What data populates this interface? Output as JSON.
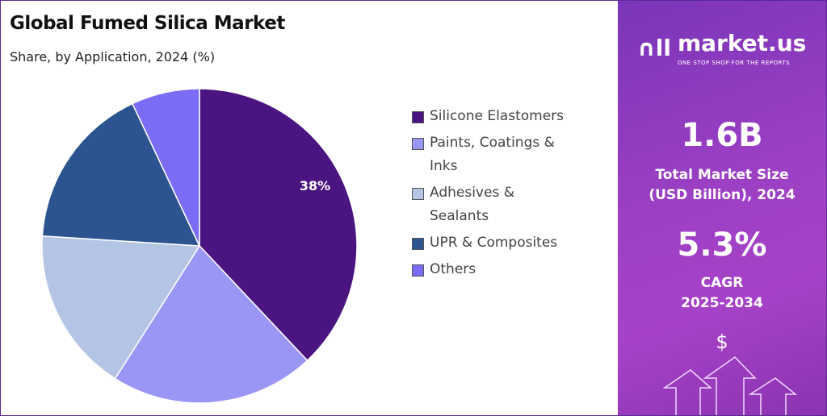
{
  "chart_data": {
    "type": "pie",
    "title": "Global Fumed Silica Market",
    "subtitle": "Share, by Application, 2024 (%)",
    "categories": [
      "Silicone Elastomers",
      "Paints, Coatings & Inks",
      "Adhesives & Sealants",
      "UPR & Composites",
      "Others"
    ],
    "values": [
      38,
      21,
      17,
      17,
      7
    ],
    "colors": [
      "#4a1580",
      "#9a96f5",
      "#b3c4e4",
      "#2c5491",
      "#7b6cf6"
    ],
    "data_labels": [
      "38%"
    ],
    "legend_position": "right",
    "start": "top, clockwise"
  },
  "legend": [
    "Silicone Elastomers",
    "Paints, Coatings & Inks",
    "Adhesives & Sealants",
    "UPR & Composites",
    "Others"
  ],
  "panel": {
    "brand": "market.us",
    "tagline": "ONE STOP SHOP FOR THE REPORTS",
    "market_size": "1.6B",
    "market_size_label_1": "Total Market Size",
    "market_size_label_2": "(USD Billion), 2024",
    "cagr": "5.3%",
    "cagr_label_1": "CAGR",
    "cagr_label_2": "2025-2034",
    "dollar": "$"
  }
}
